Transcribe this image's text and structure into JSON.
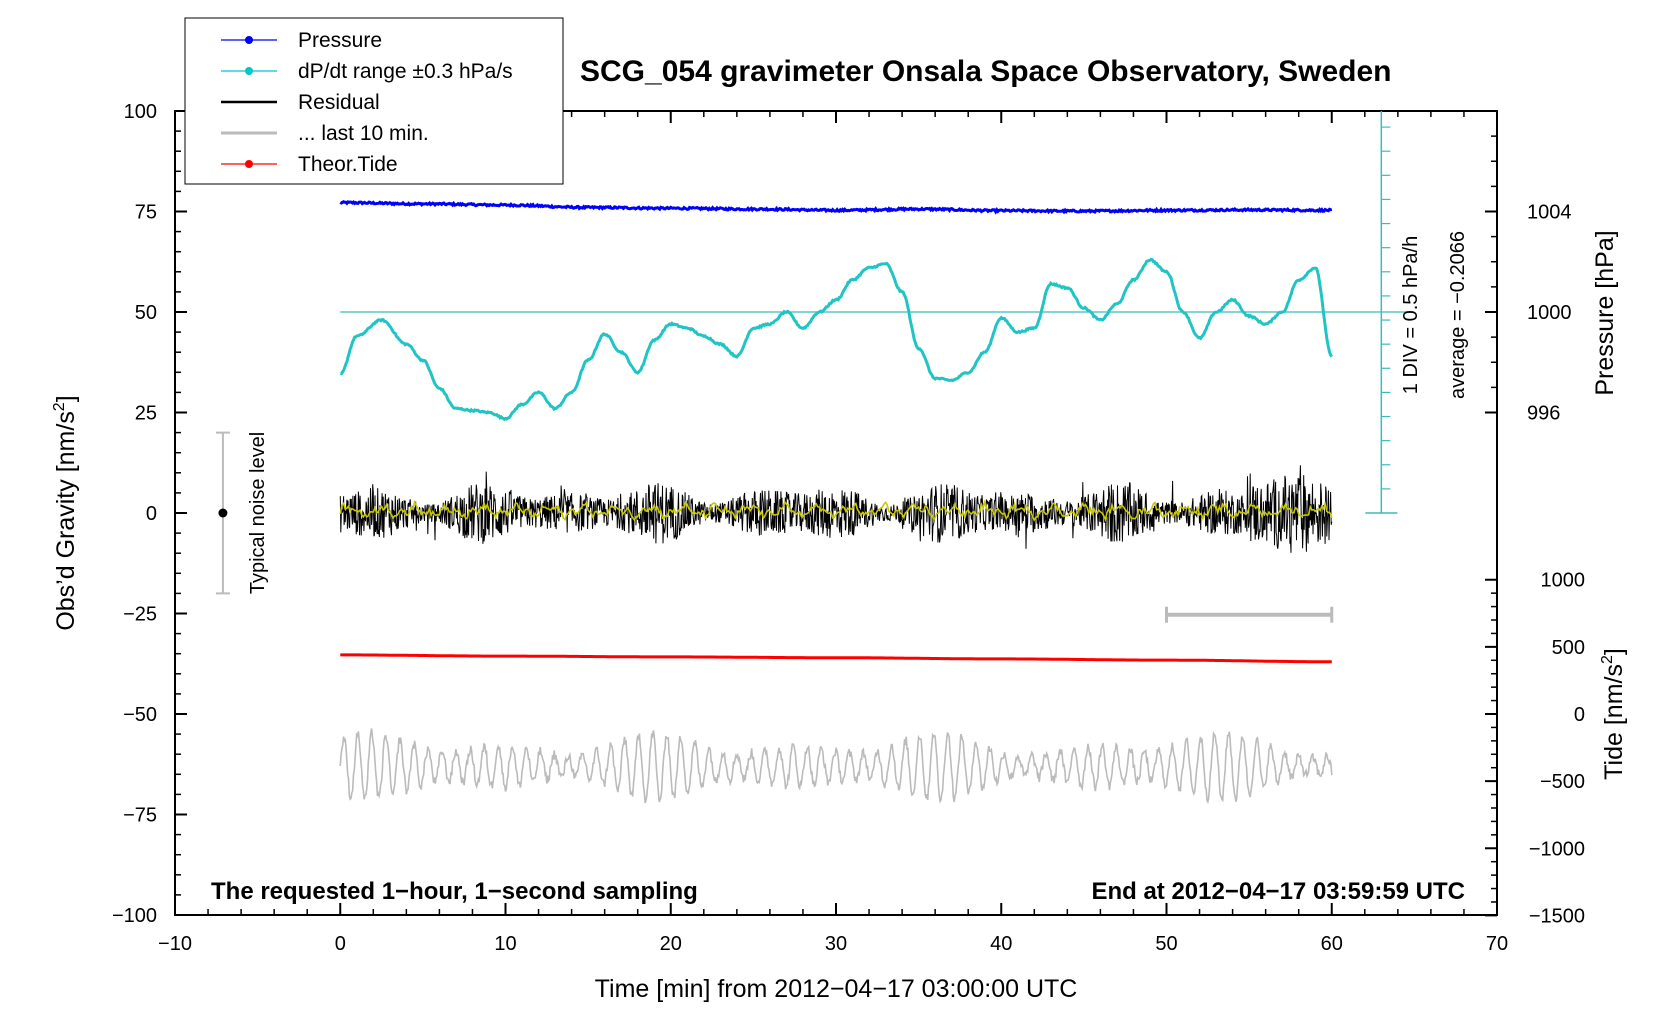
{
  "chart_data": {
    "type": "line",
    "title": "SCG_054 gravimeter Onsala Space Observatory, Sweden",
    "xlabel": "Time [min] from 2012−04−17 03:00:00 UTC",
    "ylabel_left": "Obs’d Gravity [nm/s",
    "ylabel_left_sup": "2",
    "ylabel_left_end": "]",
    "ylabel_pressure": "Pressure [hPa]",
    "ylabel_tide": "Tide [nm/s",
    "ylabel_tide_sup": "2",
    "ylabel_tide_end": "]",
    "xlim": [
      -10,
      70
    ],
    "ylim": [
      -100,
      100
    ],
    "x_ticks": [
      -10,
      0,
      10,
      20,
      30,
      40,
      50,
      60,
      70
    ],
    "x_tick_labels": [
      "−10",
      "0",
      "10",
      "20",
      "30",
      "40",
      "50",
      "60",
      "70"
    ],
    "y_ticks": [
      100,
      75,
      50,
      25,
      0,
      -25,
      -50,
      -75,
      -100
    ],
    "y_tick_labels": [
      "100",
      "75",
      "50",
      "25",
      "0",
      "−25",
      "−50",
      "−75",
      "−100"
    ],
    "pressure_axis": {
      "ticks": [
        1004,
        1000,
        996
      ],
      "labels": [
        "1004",
        "1000",
        "996"
      ]
    },
    "tide_axis": {
      "ticks": [
        1000,
        500,
        0,
        -500,
        -1000,
        -1500
      ],
      "labels": [
        "1000",
        "500",
        "0",
        "−500",
        "−1000",
        "−1500"
      ]
    },
    "legend": [
      {
        "label": "Pressure",
        "color": "#0000ff",
        "marker": true
      },
      {
        "label": "dP/dt range ±0.3 hPa/s",
        "color": "#00c8c8",
        "marker": true
      },
      {
        "label": "Residual",
        "color": "#000000",
        "marker": false
      },
      {
        "label": "... last 10 min.",
        "color": "#bbbbbb",
        "marker": false
      },
      {
        "label": "Theor.Tide",
        "color": "#ff0000",
        "marker": true
      }
    ],
    "annotations": {
      "noise_label": "Typical noise level",
      "noise_range": [
        -20,
        20
      ],
      "div_label": "1 DIV = 0.5 hPa/h",
      "average_label": "average = −0.2066",
      "bottom_left": "The requested 1−hour, 1−second sampling",
      "bottom_right": "End at 2012−04−17 03:59:59 UTC",
      "last10_bar": [
        50,
        60
      ]
    },
    "series": [
      {
        "name": "Pressure",
        "color": "#0000ff",
        "axis": "left",
        "x": [
          0,
          5,
          10,
          15,
          20,
          25,
          30,
          35,
          40,
          45,
          50,
          55,
          60
        ],
        "y": [
          77.2,
          76.9,
          76.6,
          76.0,
          75.8,
          75.6,
          75.3,
          75.6,
          75.2,
          75.1,
          75.3,
          75.4,
          75.3
        ]
      },
      {
        "name": "dP/dt",
        "color": "#20c4c4",
        "axis": "left",
        "x": [
          0,
          1,
          2.5,
          4,
          5,
          6,
          7,
          8,
          9,
          10,
          11,
          12,
          13,
          14,
          15,
          16,
          17,
          18,
          19,
          20,
          21,
          22,
          23,
          24,
          25,
          26,
          27,
          28,
          29,
          30,
          31,
          32,
          33,
          34,
          35,
          36,
          37,
          38,
          39,
          40,
          41,
          42,
          43,
          44,
          45,
          46,
          47,
          48,
          49,
          50,
          51,
          52,
          53,
          54,
          55,
          56,
          57,
          58,
          59,
          60
        ],
        "y": [
          34.5,
          44,
          48,
          42,
          38,
          31,
          26,
          25.5,
          25,
          23.5,
          27,
          30,
          26,
          30,
          38,
          44.5,
          40,
          35,
          43,
          47,
          46,
          44,
          42,
          39,
          46,
          47,
          50,
          46,
          50,
          53,
          58,
          61,
          62,
          55,
          41,
          33.5,
          33,
          35,
          40,
          48.5,
          45,
          46,
          57,
          56,
          51,
          48,
          52,
          58,
          63,
          60,
          50,
          43.5,
          50,
          53,
          49,
          47,
          50,
          58,
          61,
          39
        ]
      },
      {
        "name": "Residual",
        "color": "#000000",
        "axis": "left",
        "x_range": [
          0,
          60
        ],
        "amplitude_range": [
          -12,
          12
        ]
      },
      {
        "name": "Residual smoothed",
        "color": "#c8c800",
        "axis": "left",
        "x_range": [
          0,
          60
        ],
        "level": 0.5
      },
      {
        "name": "Theor.Tide",
        "color": "#ff0000",
        "axis": "left",
        "x": [
          0,
          10,
          20,
          30,
          40,
          50,
          60
        ],
        "y": [
          -35.3,
          -35.6,
          -35.8,
          -36.0,
          -36.3,
          -36.6,
          -37.0
        ]
      },
      {
        "name": "... last 10 min.",
        "color": "#bbbbbb",
        "axis": "left",
        "x_range": [
          0,
          60
        ],
        "center": -63,
        "amplitude_range": [
          -9,
          9
        ]
      }
    ]
  }
}
